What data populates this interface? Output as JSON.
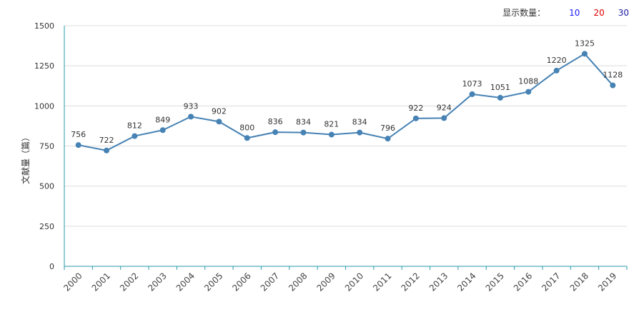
{
  "controls": {
    "label": "显示数量：",
    "options": [
      {
        "text": "10",
        "color": "#1a1aff"
      },
      {
        "text": "20",
        "color": "#e00000"
      },
      {
        "text": "30",
        "color": "#1a1aa0"
      }
    ]
  },
  "chart_data": {
    "type": "line",
    "title": "",
    "xlabel": "",
    "ylabel": "文献量（篇）",
    "categories": [
      "2000",
      "2001",
      "2002",
      "2003",
      "2004",
      "2005",
      "2006",
      "2007",
      "2008",
      "2009",
      "2010",
      "2011",
      "2012",
      "2013",
      "2014",
      "2015",
      "2016",
      "2017",
      "2018",
      "2019"
    ],
    "series": [
      {
        "values": [
          756,
          722,
          812,
          849,
          933,
          902,
          800,
          836,
          834,
          821,
          834,
          796,
          922,
          924,
          1073,
          1051,
          1088,
          1220,
          1325,
          1128
        ]
      }
    ],
    "ylim": [
      0,
      1500
    ],
    "yticks": [
      0,
      250,
      500,
      750,
      1000,
      1250,
      1500
    ],
    "grid": true,
    "colors": {
      "line": "#4682b4",
      "axis": "#2a9aa8",
      "grid": "#dddddd"
    }
  }
}
